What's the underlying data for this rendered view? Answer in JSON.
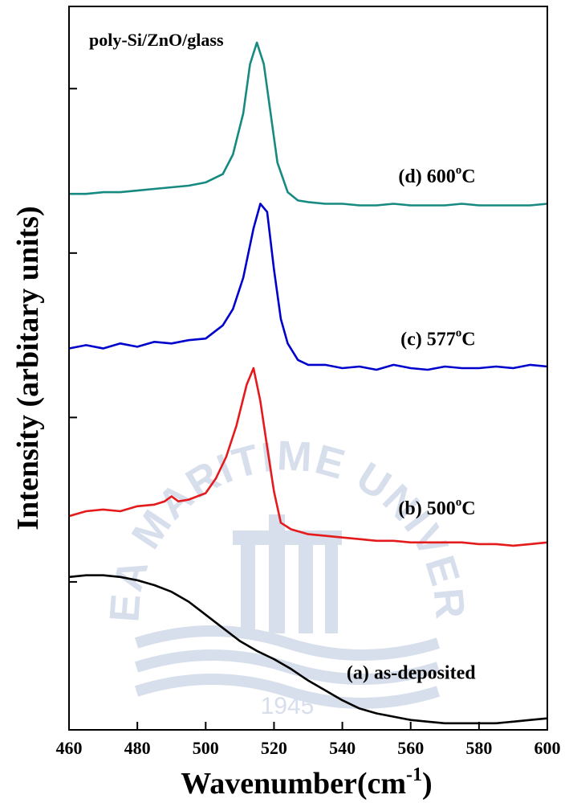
{
  "chart_data": {
    "type": "line",
    "title": "poly-Si/ZnO/glass",
    "xlabel": "Wavenumber(cm",
    "xlabel_sup": "-1",
    "xlabel_close": ")",
    "ylabel": "Intensity (arbitary units)",
    "xlim": [
      460,
      600
    ],
    "ylim": [
      0,
      4.4
    ],
    "xticks": [
      460,
      480,
      500,
      520,
      540,
      560,
      580,
      600
    ],
    "xtick_labels": [
      "460",
      "480",
      "500",
      "520",
      "540",
      "560",
      "580",
      "600"
    ],
    "yticks_unlabeled": [
      0.9,
      1.9,
      2.9,
      3.9
    ],
    "grid": false,
    "legend": "none",
    "series": [
      {
        "name": "(a) as-deposited",
        "color": "#000000",
        "x": [
          460,
          465,
          470,
          475,
          480,
          485,
          490,
          495,
          500,
          505,
          510,
          515,
          520,
          525,
          530,
          535,
          540,
          545,
          550,
          555,
          560,
          565,
          570,
          575,
          580,
          585,
          590,
          595,
          600
        ],
        "y": [
          0.93,
          0.94,
          0.94,
          0.93,
          0.91,
          0.88,
          0.84,
          0.78,
          0.7,
          0.62,
          0.54,
          0.48,
          0.43,
          0.37,
          0.3,
          0.24,
          0.18,
          0.13,
          0.1,
          0.08,
          0.06,
          0.05,
          0.04,
          0.04,
          0.04,
          0.04,
          0.05,
          0.06,
          0.07
        ]
      },
      {
        "name": "(b) 500",
        "color": "#e41a1c",
        "x": [
          460,
          465,
          470,
          475,
          480,
          485,
          488,
          490,
          492,
          495,
          500,
          503,
          506,
          509,
          512,
          514,
          516,
          518,
          520,
          522,
          525,
          530,
          535,
          540,
          545,
          550,
          555,
          560,
          565,
          570,
          575,
          580,
          585,
          590,
          595,
          600
        ],
        "y": [
          1.3,
          1.33,
          1.34,
          1.33,
          1.36,
          1.37,
          1.39,
          1.42,
          1.39,
          1.4,
          1.44,
          1.53,
          1.66,
          1.85,
          2.1,
          2.2,
          2.0,
          1.72,
          1.45,
          1.26,
          1.22,
          1.19,
          1.18,
          1.17,
          1.16,
          1.15,
          1.15,
          1.14,
          1.14,
          1.14,
          1.14,
          1.13,
          1.13,
          1.12,
          1.13,
          1.14
        ]
      },
      {
        "name": "(c) 577",
        "color": "#0000cc",
        "x": [
          460,
          465,
          470,
          475,
          480,
          485,
          490,
          495,
          500,
          505,
          508,
          511,
          514,
          516,
          518,
          520,
          522,
          524,
          527,
          530,
          535,
          540,
          545,
          550,
          555,
          560,
          565,
          570,
          575,
          580,
          585,
          590,
          595,
          600
        ],
        "y": [
          2.32,
          2.34,
          2.32,
          2.35,
          2.33,
          2.36,
          2.35,
          2.37,
          2.38,
          2.46,
          2.56,
          2.75,
          3.05,
          3.2,
          3.15,
          2.8,
          2.5,
          2.35,
          2.25,
          2.22,
          2.22,
          2.2,
          2.21,
          2.19,
          2.22,
          2.2,
          2.19,
          2.21,
          2.2,
          2.2,
          2.21,
          2.2,
          2.22,
          2.21
        ]
      },
      {
        "name": "(d) 600",
        "color": "#168a80",
        "x": [
          460,
          465,
          470,
          475,
          480,
          485,
          490,
          495,
          500,
          505,
          508,
          511,
          513,
          515,
          517,
          519,
          521,
          524,
          527,
          530,
          535,
          540,
          545,
          550,
          555,
          560,
          565,
          570,
          575,
          580,
          585,
          590,
          595,
          600
        ],
        "y": [
          3.26,
          3.26,
          3.27,
          3.27,
          3.28,
          3.29,
          3.3,
          3.31,
          3.33,
          3.38,
          3.5,
          3.75,
          4.05,
          4.18,
          4.05,
          3.75,
          3.45,
          3.27,
          3.22,
          3.21,
          3.2,
          3.2,
          3.19,
          3.19,
          3.2,
          3.19,
          3.19,
          3.19,
          3.2,
          3.19,
          3.19,
          3.19,
          3.19,
          3.2
        ]
      }
    ],
    "annotations": [
      {
        "prefix": "(d) 600",
        "sup": "o",
        "unit": "C",
        "x": 579,
        "y": 3.33
      },
      {
        "prefix": "(c) 577",
        "sup": "o",
        "unit": "C",
        "x": 579,
        "y": 2.34
      },
      {
        "prefix": "(b) 500",
        "sup": "o",
        "unit": "C",
        "x": 579,
        "y": 1.31
      },
      {
        "prefix": "(a) as-deposited",
        "sup": "",
        "unit": "",
        "x": 579,
        "y": 0.31
      }
    ],
    "watermark": {
      "arc_text": "KOREA MARITIME UNIVERSITY",
      "year": "1945",
      "color": "#b8c4dd"
    }
  }
}
